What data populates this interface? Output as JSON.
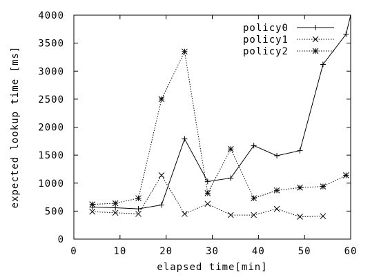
{
  "chart_data": {
    "type": "line",
    "xlabel": "elapsed time[min]",
    "ylabel": "expected lookup time [ms]",
    "xlim": [
      0,
      60
    ],
    "ylim": [
      0,
      4000
    ],
    "xticks": [
      0,
      10,
      20,
      30,
      40,
      50,
      60
    ],
    "yticks": [
      0,
      500,
      1000,
      1500,
      2000,
      2500,
      3000,
      3500,
      4000
    ],
    "grid": false,
    "legend_position": "top-right",
    "series": [
      {
        "name": "policy0",
        "marker": "plus",
        "line": "solid",
        "x": [
          4,
          9,
          14,
          19,
          24,
          29,
          34,
          39,
          44,
          49,
          54,
          59,
          60
        ],
        "y": [
          570,
          560,
          540,
          610,
          1790,
          1030,
          1090,
          1670,
          1490,
          1580,
          3120,
          3660,
          4000
        ]
      },
      {
        "name": "policy1",
        "marker": "cross",
        "line": "dotted",
        "x": [
          4,
          9,
          14,
          19,
          24,
          29,
          34,
          39,
          44,
          49,
          54
        ],
        "y": [
          490,
          470,
          450,
          1140,
          450,
          630,
          430,
          430,
          540,
          400,
          410
        ]
      },
      {
        "name": "policy2",
        "marker": "star",
        "line": "dotted",
        "x": [
          4,
          9,
          14,
          19,
          24,
          29,
          34,
          39,
          44,
          49,
          54,
          59
        ],
        "y": [
          620,
          640,
          730,
          2500,
          3350,
          820,
          1610,
          730,
          870,
          920,
          940,
          1140
        ]
      }
    ]
  }
}
